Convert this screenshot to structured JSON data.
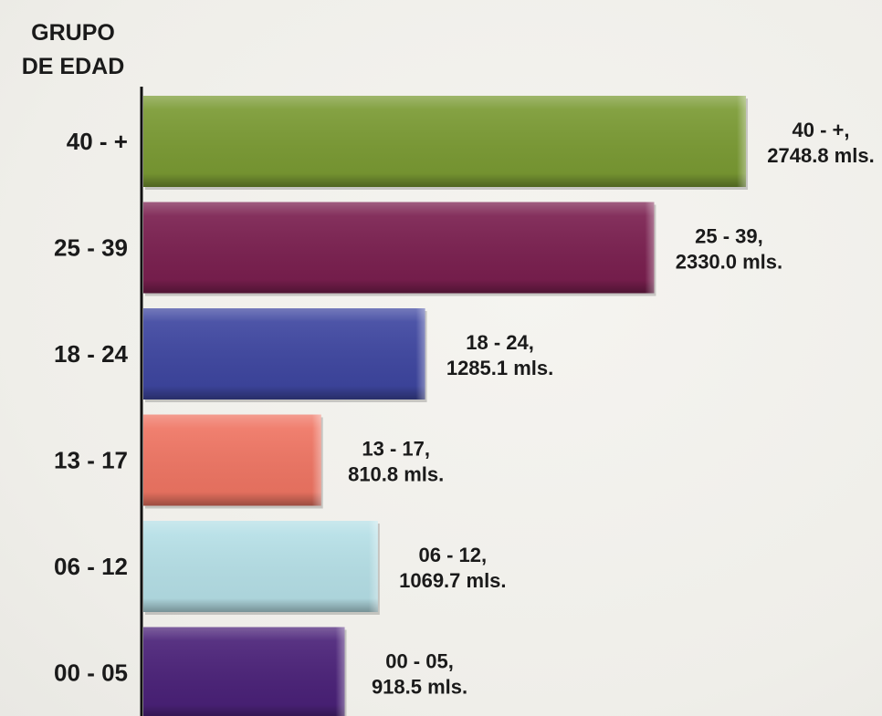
{
  "chart_data": {
    "type": "bar",
    "orientation": "horizontal",
    "ylabel_lines": [
      "GRUPO",
      "DE EDAD"
    ],
    "categories": [
      "40 - +",
      "25 - 39",
      "18 - 24",
      "13 - 17",
      "06 - 12",
      "00 - 05"
    ],
    "values": [
      2748.8,
      2330.0,
      1285.1,
      810.8,
      1069.7,
      918.5
    ],
    "colors": [
      "#7a9a33",
      "#7a1f4f",
      "#3e46a0",
      "#ef7563",
      "#b5dfe6",
      "#4a2178"
    ],
    "data_labels": [
      [
        "40 - +,",
        "2748.8 mls."
      ],
      [
        "25 - 39,",
        "2330.0 mls."
      ],
      [
        "18 - 24,",
        "1285.1 mls."
      ],
      [
        "13 - 17,",
        "810.8 mls."
      ],
      [
        "06 - 12,",
        "1069.7 mls."
      ],
      [
        "00 - 05,",
        "918.5 mls."
      ]
    ],
    "legend": "none",
    "grid": false
  }
}
